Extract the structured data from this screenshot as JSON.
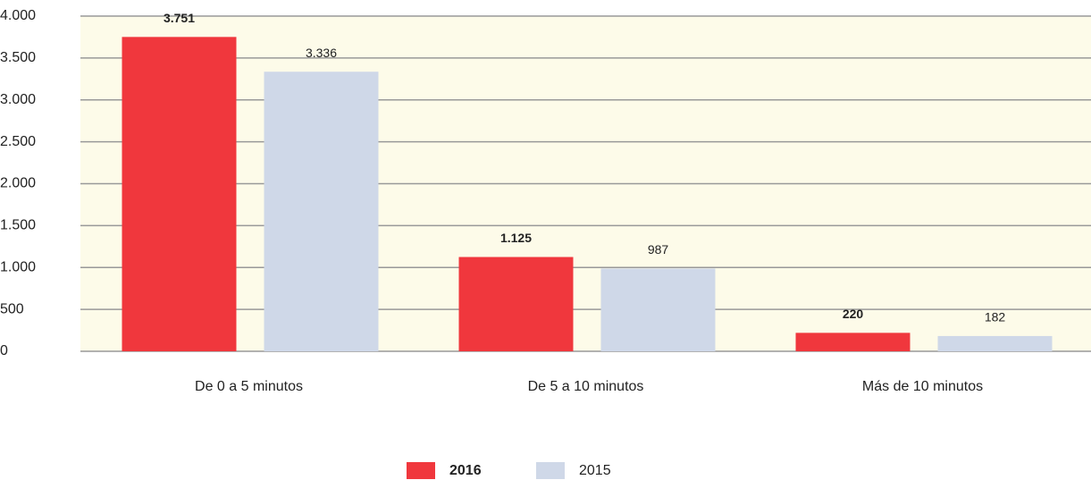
{
  "chart_data": {
    "type": "bar",
    "categories": [
      "De 0 a 5 minutos",
      "De 5 a 10 minutos",
      "Más de 10 minutos"
    ],
    "series": [
      {
        "name": "2016",
        "color": "#f0373d",
        "values": [
          3751,
          1125,
          220
        ],
        "value_labels": [
          "3.751",
          "1.125",
          "220"
        ]
      },
      {
        "name": "2015",
        "color": "#cfd8e8",
        "values": [
          3336,
          987,
          182
        ],
        "value_labels": [
          "3.336",
          "987",
          "182"
        ]
      }
    ],
    "ylim": [
      0,
      4000
    ],
    "yticks": [
      0,
      500,
      {
        "value": 1000,
        "label": "1.000"
      },
      {
        "value": 1500,
        "label": "1.500"
      },
      {
        "value": 2000,
        "label": "2.000"
      },
      {
        "value": 2500,
        "label": "2.500"
      },
      {
        "value": 3000,
        "label": "3.000"
      },
      {
        "value": 3500,
        "label": "3.500"
      },
      {
        "value": 4000,
        "label": "4.000"
      }
    ],
    "grid": true,
    "legend": "bottom"
  }
}
